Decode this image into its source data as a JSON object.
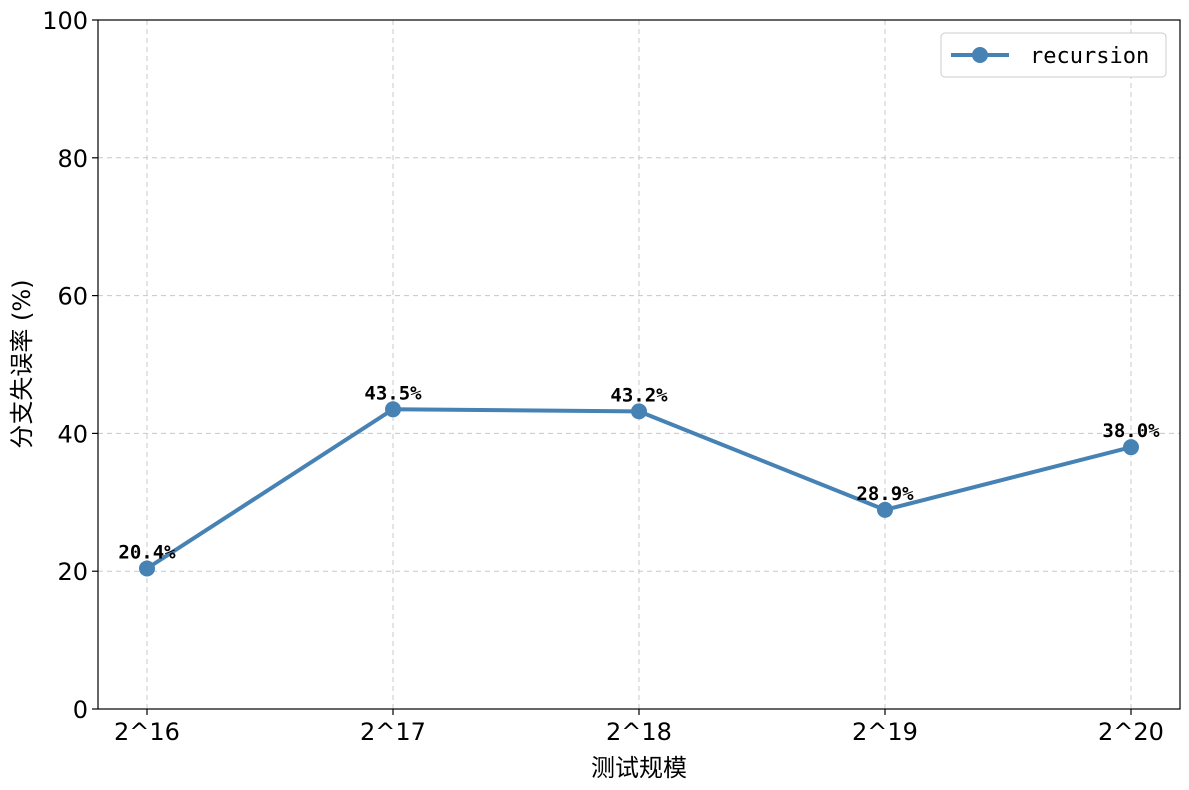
{
  "chart_data": {
    "type": "line",
    "categories": [
      "2^16",
      "2^17",
      "2^18",
      "2^19",
      "2^20"
    ],
    "series": [
      {
        "name": "recursion",
        "values": [
          20.4,
          43.5,
          43.2,
          28.9,
          38.0
        ],
        "labels": [
          "20.4%",
          "43.5%",
          "43.2%",
          "28.9%",
          "38.0%"
        ],
        "color": "#4682b4"
      }
    ],
    "xlabel": "测试规模",
    "ylabel": "分支失误率 (%)",
    "ylim": [
      0,
      100
    ],
    "yticks": [
      "0",
      "20",
      "40",
      "60",
      "80",
      "100"
    ],
    "grid": true,
    "legend_position": "top-right"
  }
}
